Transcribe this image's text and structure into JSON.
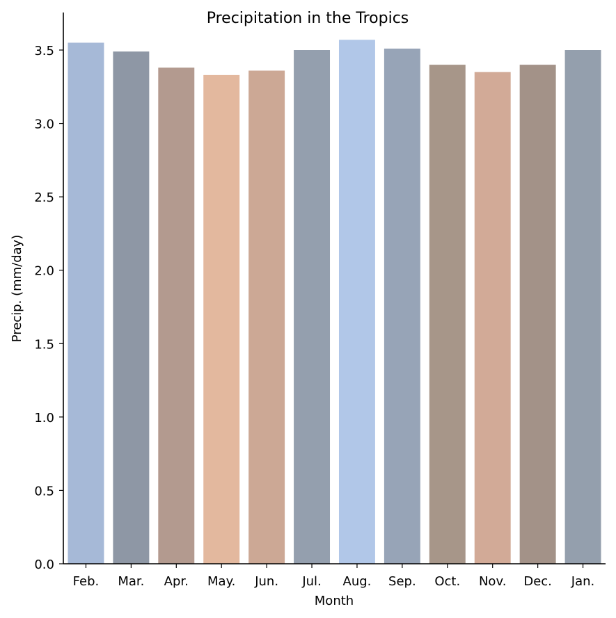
{
  "chart_data": {
    "type": "bar",
    "title": "Precipitation in the Tropics",
    "xlabel": "Month",
    "ylabel": "Precip. (mm/day)",
    "categories": [
      "Feb.",
      "Mar.",
      "Apr.",
      "May.",
      "Jun.",
      "Jul.",
      "Aug.",
      "Sep.",
      "Oct.",
      "Nov.",
      "Dec.",
      "Jan."
    ],
    "values": [
      3.55,
      3.49,
      3.38,
      3.33,
      3.36,
      3.5,
      3.57,
      3.51,
      3.4,
      3.35,
      3.4,
      3.5
    ],
    "colors": [
      "#a6b9d7",
      "#8e97a5",
      "#b39a8f",
      "#e3b89e",
      "#cca895",
      "#949fae",
      "#b1c7e8",
      "#97a4b7",
      "#a79689",
      "#d2aa97",
      "#a39288",
      "#949fad"
    ],
    "ylim": [
      0,
      3.75
    ],
    "yticks": [
      "0.0",
      "0.5",
      "1.0",
      "1.5",
      "2.0",
      "2.5",
      "3.0",
      "3.5"
    ],
    "ytick_values": [
      0,
      0.5,
      1.0,
      1.5,
      2.0,
      2.5,
      3.0,
      3.5
    ],
    "grid": false,
    "legend": "none"
  }
}
